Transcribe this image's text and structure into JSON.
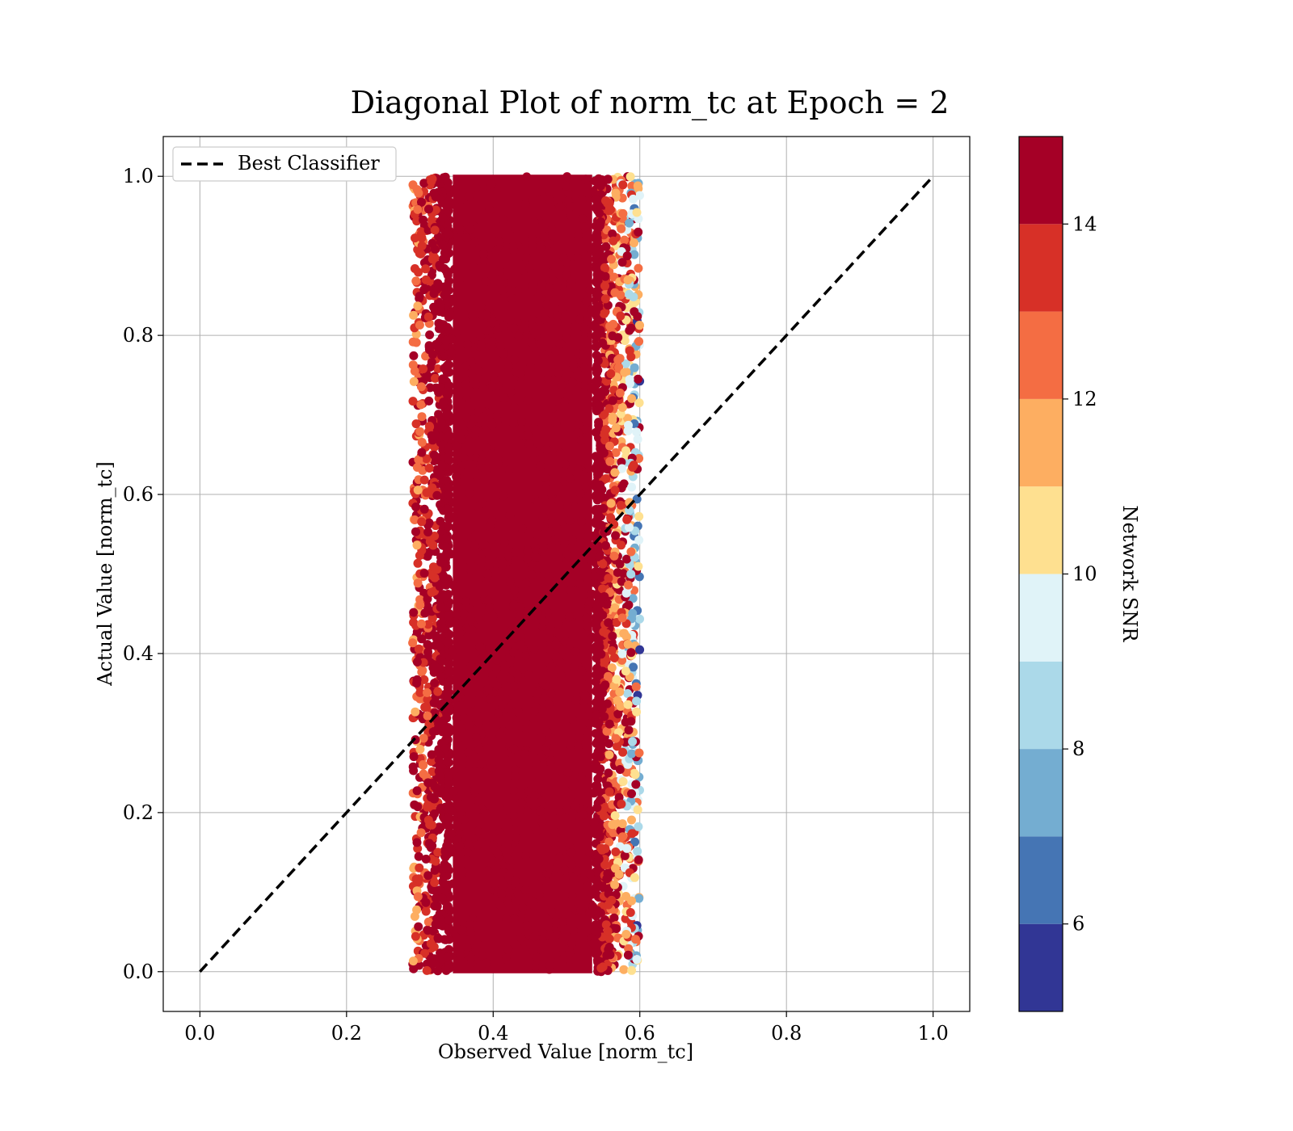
{
  "chart_data": {
    "type": "scatter",
    "title": "Diagonal Plot of norm_tc at Epoch = 2",
    "xlabel": "Observed Value [norm_tc]",
    "ylabel": "Actual Value [norm_tc]",
    "xlim": [
      -0.05,
      1.05
    ],
    "ylim": [
      -0.05,
      1.05
    ],
    "xticks": [
      0.0,
      0.2,
      0.4,
      0.6,
      0.8,
      1.0
    ],
    "yticks": [
      0.0,
      0.2,
      0.4,
      0.6,
      0.8,
      1.0
    ],
    "xtick_labels": [
      "0.0",
      "0.2",
      "0.4",
      "0.6",
      "0.8",
      "1.0"
    ],
    "ytick_labels": [
      "0.0",
      "0.2",
      "0.4",
      "0.6",
      "0.8",
      "1.0"
    ],
    "grid": true,
    "legend": {
      "placement": "upper-left",
      "entries": [
        "Best Classifier"
      ]
    },
    "reference_line": {
      "name": "Best Classifier",
      "x": [
        0.0,
        1.0
      ],
      "y": [
        0.0,
        1.0
      ],
      "style": "dashed",
      "color": "#000000"
    },
    "scatter_summary": {
      "x_center": 0.43,
      "x_core_range": [
        0.34,
        0.54
      ],
      "x_full_range": [
        0.29,
        0.6
      ],
      "y_range": [
        0.0,
        1.0
      ],
      "dominant_color": "#a50026"
    },
    "colorbar": {
      "label": "Network SNR",
      "range": [
        5,
        15
      ],
      "ticks": [
        6,
        8,
        10,
        12,
        14
      ],
      "tick_labels": [
        "6",
        "8",
        "10",
        "12",
        "14"
      ],
      "colors": [
        "#313695",
        "#4575b4",
        "#74add1",
        "#abd9e9",
        "#e0f3f8",
        "#fee090",
        "#fdae61",
        "#f46d43",
        "#d73027",
        "#a50026"
      ]
    }
  }
}
